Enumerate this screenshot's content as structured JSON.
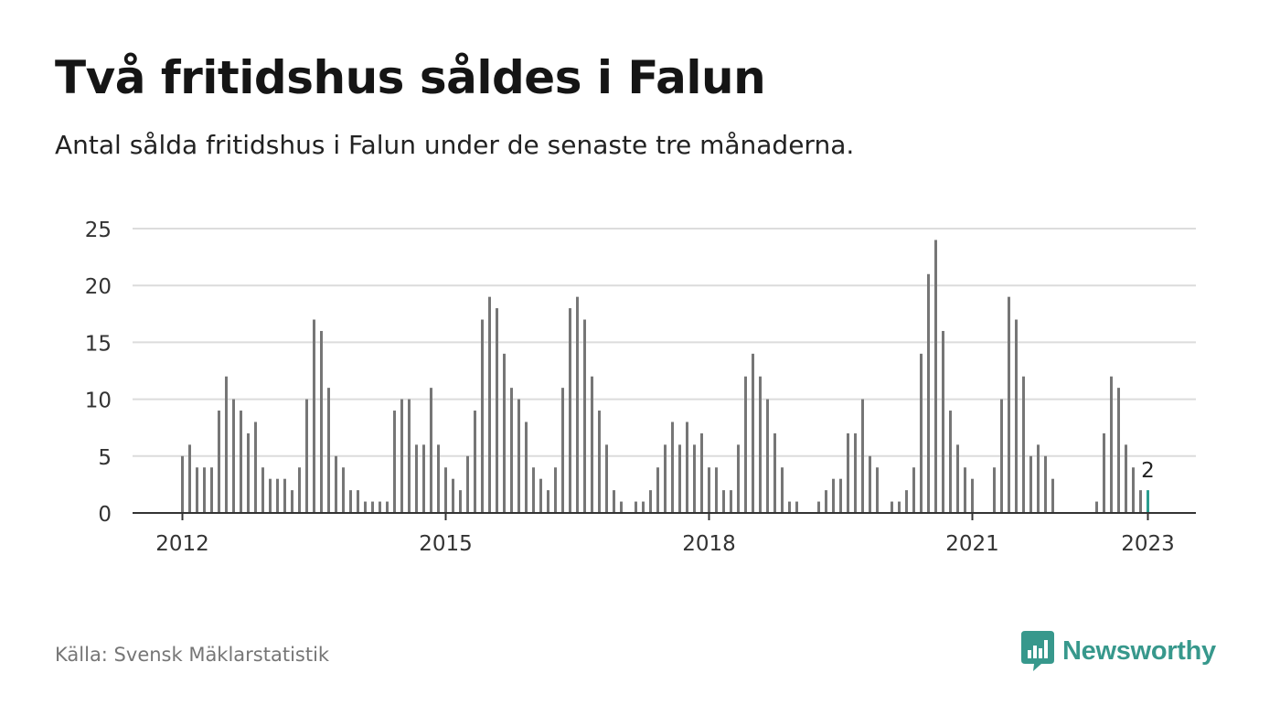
{
  "title": "Två fritidshus såldes i Falun",
  "subtitle": "Antal sålda fritidshus i Falun under de senaste tre månaderna.",
  "source": "Källa: Svensk Mäklarstatistik",
  "brand": "Newsworthy",
  "colors": {
    "bar": "#767676",
    "highlight": "#2a9d8f",
    "grid": "#dcdcdc",
    "axis": "#333333",
    "brand": "#37988c"
  },
  "chart_data": {
    "type": "bar",
    "x_start": "2012-01",
    "xtick_labels": [
      "2012",
      "2015",
      "2018",
      "2021",
      "2023"
    ],
    "ytick_labels": [
      "0",
      "5",
      "10",
      "15",
      "20",
      "25"
    ],
    "ylim": [
      0,
      25
    ],
    "grid": true,
    "highlight_label": "2",
    "values": [
      5,
      6,
      4,
      4,
      4,
      9,
      12,
      10,
      9,
      7,
      8,
      4,
      3,
      3,
      3,
      2,
      4,
      10,
      17,
      16,
      11,
      5,
      4,
      2,
      2,
      1,
      1,
      1,
      1,
      9,
      10,
      10,
      6,
      6,
      11,
      6,
      4,
      3,
      2,
      5,
      9,
      17,
      19,
      18,
      14,
      11,
      10,
      8,
      4,
      3,
      2,
      4,
      11,
      18,
      19,
      17,
      12,
      9,
      6,
      2,
      1,
      0,
      1,
      1,
      2,
      4,
      6,
      8,
      6,
      8,
      6,
      7,
      4,
      4,
      2,
      2,
      6,
      12,
      14,
      12,
      10,
      7,
      4,
      1,
      1,
      0,
      0,
      1,
      2,
      3,
      3,
      7,
      7,
      10,
      5,
      4,
      0,
      1,
      1,
      2,
      4,
      14,
      21,
      24,
      16,
      9,
      6,
      4,
      3,
      0,
      0,
      4,
      10,
      19,
      17,
      12,
      5,
      6,
      5,
      3,
      0,
      0,
      0,
      0,
      0,
      1,
      7,
      12,
      11,
      6,
      4,
      2,
      2
    ]
  }
}
